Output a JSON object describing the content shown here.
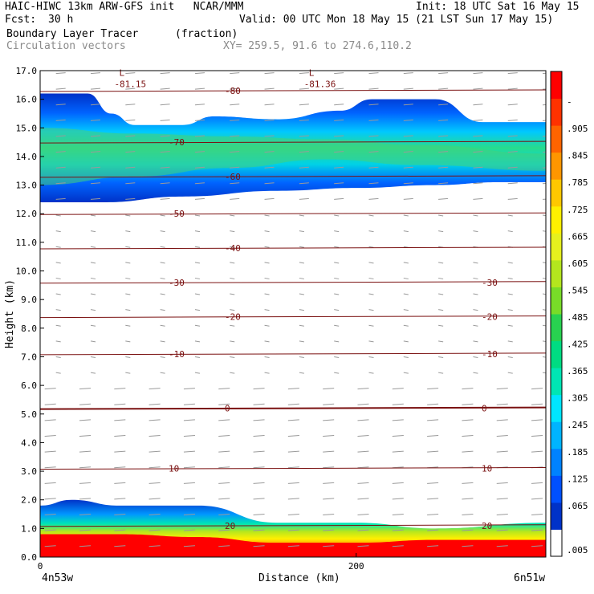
{
  "header": {
    "title_left": "HAIC-HIWC 13km ARW-GFS init   NCAR/MMM",
    "init": "Init: 18 UTC Sat 16 May 15",
    "fcst_label": "Fcst:",
    "fcst_value": "30 h",
    "valid": "Valid: 00 UTC Mon 18 May 15 (21 LST Sun 17 May 15)",
    "field_name": "Boundary Layer Tracer",
    "field_units": "(fraction)",
    "vectors_label": "Circulation vectors",
    "xy_label": "XY= 259.5, 91.6 to 274.6,110.2"
  },
  "chart_data": {
    "type": "heatmap",
    "xlabel": "Distance (km)",
    "ylabel": "Height (km)",
    "xlim": [
      0,
      320
    ],
    "ylim": [
      0,
      17
    ],
    "x_ticks": [
      {
        "value": 0,
        "label": "0"
      },
      {
        "value": 200,
        "label": "200"
      }
    ],
    "y_ticks": [
      "0.0",
      "1.0",
      "2.0",
      "3.0",
      "4.0",
      "5.0",
      "6.0",
      "7.0",
      "8.0",
      "9.0",
      "10.0",
      "11.0",
      "12.0",
      "13.0",
      "14.0",
      "15.0",
      "16.0",
      "17.0"
    ],
    "endpoints": {
      "left": "4n53w",
      "right": "6n51w"
    },
    "colorbar": {
      "labels": [
        ".005",
        ".065",
        ".125",
        ".185",
        ".245",
        ".305",
        ".365",
        ".425",
        ".485",
        ".545",
        ".605",
        ".665",
        ".725",
        ".785",
        ".845",
        ".905",
        "-"
      ],
      "colors": [
        "#ffffff",
        "#0032c8",
        "#0050ff",
        "#0082ff",
        "#00b4ff",
        "#00e6ff",
        "#00e6b4",
        "#00dc82",
        "#28d250",
        "#78dc28",
        "#b4e61e",
        "#e6f01e",
        "#fff000",
        "#ffc800",
        "#ff9600",
        "#ff6400",
        "#ff3200",
        "#ff0000"
      ]
    },
    "temperature_contours": [
      {
        "value": -80,
        "height": 16.3,
        "label": "-80"
      },
      {
        "value": -70,
        "height": 14.5,
        "label": "-70"
      },
      {
        "value": -60,
        "height": 13.3,
        "label": "-60"
      },
      {
        "value": -50,
        "height": 12.0,
        "label": "-50"
      },
      {
        "value": -40,
        "height": 10.8,
        "label": "-40"
      },
      {
        "value": -30,
        "height": 9.6,
        "label": "-30"
      },
      {
        "value": -20,
        "height": 8.4,
        "label": "-20"
      },
      {
        "value": -10,
        "height": 7.1,
        "label": "-10"
      },
      {
        "value": 0,
        "height": 5.2,
        "label": "0"
      },
      {
        "value": 10,
        "height": 3.1,
        "label": "10"
      },
      {
        "value": 20,
        "height": 1.1,
        "label": "20"
      }
    ],
    "minima": [
      {
        "x": 50,
        "y": 16.6,
        "symbol": "L",
        "label": "-81.15"
      },
      {
        "x": 170,
        "y": 16.6,
        "symbol": "L",
        "label": "-81.36"
      }
    ],
    "upper_layer": {
      "top": [
        [
          0,
          16.2
        ],
        [
          30,
          16.2
        ],
        [
          45,
          15.5
        ],
        [
          60,
          15.1
        ],
        [
          90,
          15.1
        ],
        [
          110,
          15.4
        ],
        [
          150,
          15.3
        ],
        [
          190,
          15.6
        ],
        [
          210,
          16.0
        ],
        [
          250,
          16.0
        ],
        [
          280,
          15.2
        ],
        [
          320,
          15.2
        ]
      ],
      "bottom": [
        [
          0,
          12.4
        ],
        [
          40,
          12.4
        ],
        [
          90,
          12.6
        ],
        [
          150,
          12.8
        ],
        [
          200,
          12.9
        ],
        [
          250,
          13.0
        ],
        [
          290,
          13.1
        ],
        [
          320,
          13.1
        ]
      ],
      "core_top": [
        [
          0,
          15.0
        ],
        [
          60,
          14.8
        ],
        [
          120,
          14.7
        ],
        [
          180,
          14.6
        ],
        [
          240,
          14.4
        ],
        [
          320,
          14.1
        ]
      ],
      "core_bottom": [
        [
          0,
          13.0
        ],
        [
          60,
          13.3
        ],
        [
          120,
          13.6
        ],
        [
          180,
          13.9
        ],
        [
          240,
          13.7
        ],
        [
          320,
          13.5
        ]
      ]
    },
    "boundary_layer": {
      "top": [
        [
          0,
          1.8
        ],
        [
          20,
          2.0
        ],
        [
          50,
          1.8
        ],
        [
          100,
          1.8
        ],
        [
          150,
          1.2
        ],
        [
          200,
          1.2
        ],
        [
          250,
          1.0
        ],
        [
          320,
          1.2
        ]
      ],
      "red_top": [
        [
          0,
          0.8
        ],
        [
          50,
          0.8
        ],
        [
          100,
          0.7
        ],
        [
          150,
          0.5
        ],
        [
          200,
          0.5
        ],
        [
          250,
          0.6
        ],
        [
          320,
          0.6
        ]
      ]
    }
  }
}
